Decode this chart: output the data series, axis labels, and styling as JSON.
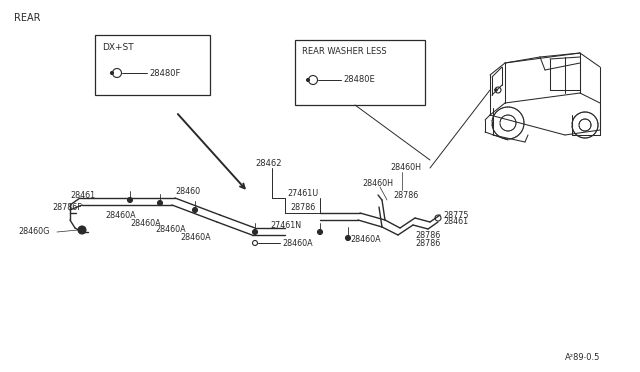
{
  "bg_color": "#ffffff",
  "line_color": "#2a2a2a",
  "text_color": "#2a2a2a",
  "title": "REAR",
  "watermark": "A²89⋅0.5",
  "box1_title": "DX+ST",
  "box1_part": "28480F",
  "box2_title": "REAR WASHER LESS",
  "box2_part": "28480E"
}
